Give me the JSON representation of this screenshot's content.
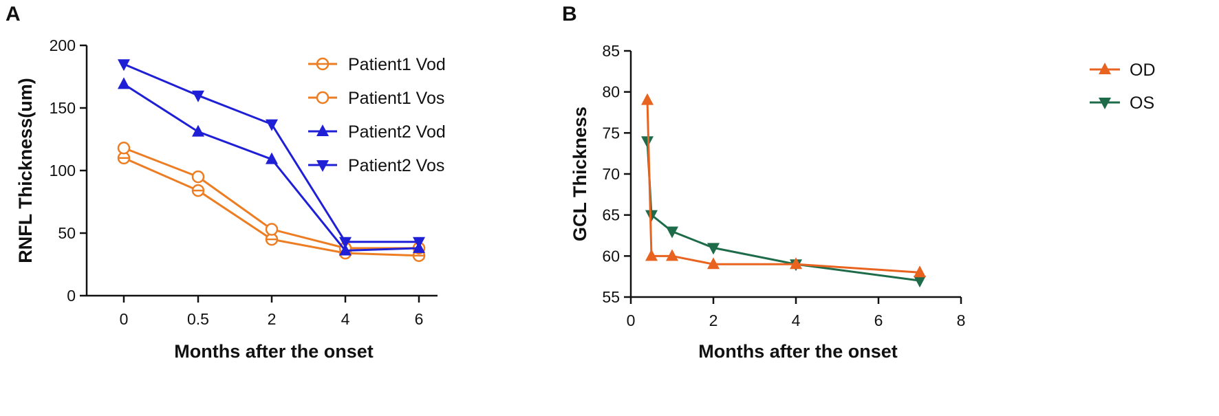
{
  "figure": {
    "panel_a_label": "A",
    "panel_b_label": "B"
  },
  "colors": {
    "orange": "#ED7D22",
    "blue": "#1F1FD6",
    "od": "#E8631F",
    "os": "#1E6B4A",
    "axis": "#111111"
  },
  "chart_data": [
    {
      "type": "line",
      "panel": "A",
      "categories": [
        "0",
        "0.5",
        "2",
        "4",
        "6"
      ],
      "xlabel": "Months after the onset",
      "ylabel": "RNFL Thickness(um)",
      "ylim": [
        0,
        200
      ],
      "yticks": [
        0,
        50,
        100,
        150,
        200
      ],
      "legend_position": "top-right",
      "series": [
        {
          "name": "Patient1 Vod",
          "color": "#ED7D22",
          "marker": "circle-bar",
          "values": [
            110,
            84,
            45,
            34,
            32
          ]
        },
        {
          "name": "Patient1 Vos",
          "color": "#ED7D22",
          "marker": "circle-hollow",
          "values": [
            118,
            95,
            53,
            38,
            38
          ]
        },
        {
          "name": "Patient2 Vod",
          "color": "#1F1FD6",
          "marker": "triangle-up",
          "values": [
            169,
            131,
            109,
            36,
            38
          ]
        },
        {
          "name": "Patient2 Vos",
          "color": "#1F1FD6",
          "marker": "triangle-down",
          "values": [
            185,
            160,
            137,
            43,
            43
          ]
        }
      ]
    },
    {
      "type": "line",
      "panel": "B",
      "xlabel": "Months after the onset",
      "ylabel": "GCL Thickness",
      "xlim": [
        0,
        8
      ],
      "xticks": [
        0,
        2,
        4,
        6,
        8
      ],
      "ylim": [
        55,
        85
      ],
      "yticks": [
        55,
        60,
        65,
        70,
        75,
        80,
        85
      ],
      "legend_position": "top-right",
      "series": [
        {
          "name": "OD",
          "color": "#E8631F",
          "marker": "triangle-up",
          "x": [
            0.4,
            0.5,
            1,
            2,
            4,
            7
          ],
          "y": [
            79,
            60,
            60,
            59,
            59,
            58
          ]
        },
        {
          "name": "OS",
          "color": "#1E6B4A",
          "marker": "triangle-down",
          "x": [
            0.4,
            0.5,
            1,
            2,
            4,
            7
          ],
          "y": [
            74,
            65,
            63,
            61,
            59,
            57
          ]
        }
      ]
    }
  ]
}
